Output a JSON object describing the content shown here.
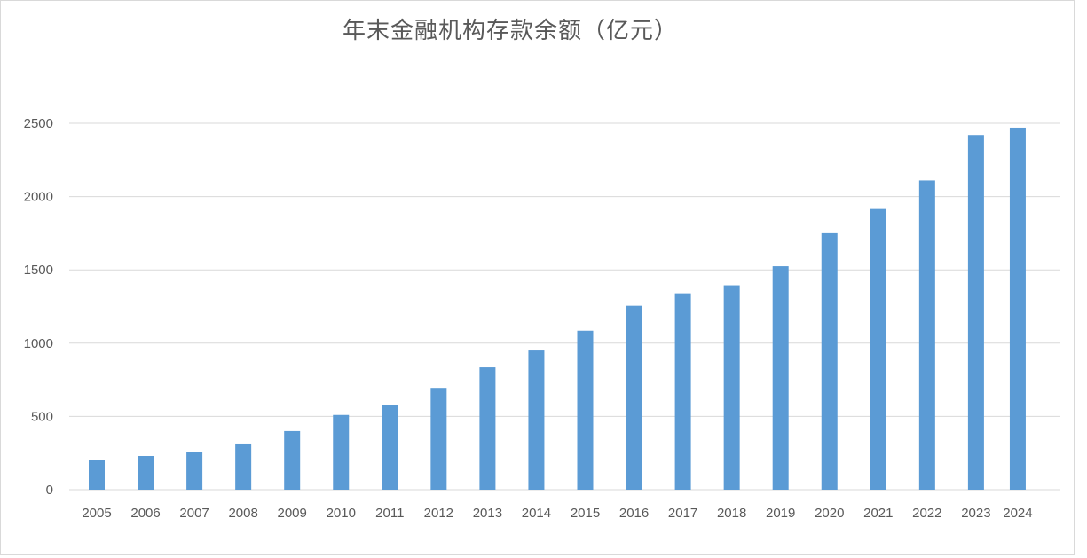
{
  "chart_data": {
    "type": "bar",
    "title": "年末金融机构存款余额（亿元）",
    "xlabel": "",
    "ylabel": "",
    "categories": [
      "2005",
      "2006",
      "2007",
      "2008",
      "2009",
      "2010",
      "2011",
      "2012",
      "2013",
      "2014",
      "2015",
      "2016",
      "2017",
      "2018",
      "2019",
      "2020",
      "2021",
      "2022",
      "2023",
      "2024"
    ],
    "values": [
      200,
      230,
      255,
      315,
      400,
      510,
      580,
      695,
      835,
      950,
      1085,
      1255,
      1340,
      1395,
      1525,
      1750,
      1915,
      2110,
      2420,
      2470
    ],
    "ylim": [
      0,
      2500
    ],
    "yticks": [
      "0",
      "500",
      "1000",
      "1500",
      "2000",
      "2500"
    ],
    "grid": true,
    "bar_color": "#5b9bd5",
    "grid_color": "#d9d9d9"
  }
}
